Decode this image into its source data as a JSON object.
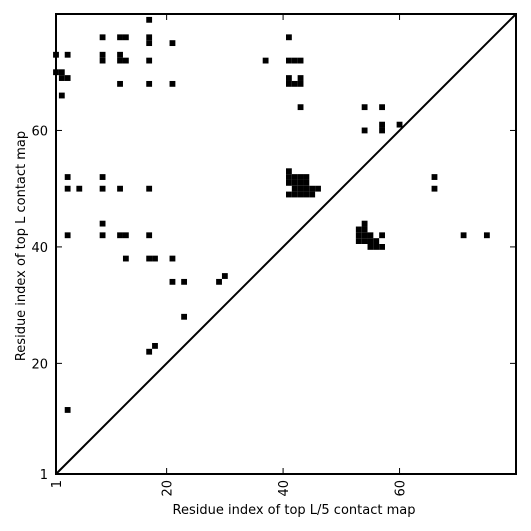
{
  "chart_data": {
    "type": "heatmap",
    "title": "",
    "xlabel": "Residue index of top L/5 contact map",
    "ylabel": "Residue index of top L contact map",
    "xlim": [
      1,
      80
    ],
    "ylim": [
      1,
      80
    ],
    "x_ticks": [
      1,
      20,
      40,
      60
    ],
    "y_ticks": [
      1,
      20,
      40,
      60
    ],
    "x_tick_labels": [
      "1",
      "20",
      "40",
      "60"
    ],
    "y_tick_labels": [
      "1",
      "20",
      "40",
      "60"
    ],
    "x_tick_rotation": 270,
    "diagonal": true,
    "grid": false,
    "cell_color": "#000000",
    "cells": [
      [
        3,
        12
      ],
      [
        17,
        22
      ],
      [
        18,
        23
      ],
      [
        23,
        28
      ],
      [
        21,
        34
      ],
      [
        23,
        34
      ],
      [
        29,
        34
      ],
      [
        30,
        35
      ],
      [
        13,
        38
      ],
      [
        17,
        38
      ],
      [
        18,
        38
      ],
      [
        21,
        38
      ],
      [
        3,
        42
      ],
      [
        9,
        42
      ],
      [
        12,
        42
      ],
      [
        13,
        42
      ],
      [
        17,
        42
      ],
      [
        71,
        42
      ],
      [
        75,
        42
      ],
      [
        9,
        44
      ],
      [
        3,
        50
      ],
      [
        5,
        50
      ],
      [
        9,
        50
      ],
      [
        12,
        50
      ],
      [
        17,
        50
      ],
      [
        66,
        50
      ],
      [
        3,
        52
      ],
      [
        9,
        52
      ],
      [
        66,
        52
      ],
      [
        41,
        49
      ],
      [
        42,
        49
      ],
      [
        43,
        49
      ],
      [
        44,
        49
      ],
      [
        45,
        49
      ],
      [
        42,
        50
      ],
      [
        43,
        50
      ],
      [
        44,
        50
      ],
      [
        45,
        50
      ],
      [
        46,
        50
      ],
      [
        41,
        51
      ],
      [
        42,
        51
      ],
      [
        43,
        51
      ],
      [
        44,
        51
      ],
      [
        41,
        52
      ],
      [
        42,
        52
      ],
      [
        43,
        52
      ],
      [
        44,
        52
      ],
      [
        41,
        53
      ],
      [
        55,
        40
      ],
      [
        56,
        40
      ],
      [
        57,
        40
      ],
      [
        53,
        41
      ],
      [
        54,
        41
      ],
      [
        55,
        41
      ],
      [
        56,
        41
      ],
      [
        53,
        42
      ],
      [
        54,
        42
      ],
      [
        55,
        42
      ],
      [
        57,
        42
      ],
      [
        53,
        43
      ],
      [
        54,
        43
      ],
      [
        54,
        44
      ],
      [
        54,
        60
      ],
      [
        57,
        60
      ],
      [
        57,
        61
      ],
      [
        60,
        61
      ],
      [
        54,
        64
      ],
      [
        57,
        64
      ],
      [
        43,
        64
      ],
      [
        2,
        66
      ],
      [
        1,
        70
      ],
      [
        2,
        70
      ],
      [
        2,
        69
      ],
      [
        3,
        69
      ],
      [
        1,
        73
      ],
      [
        3,
        73
      ],
      [
        9,
        73
      ],
      [
        12,
        73
      ],
      [
        9,
        72
      ],
      [
        12,
        72
      ],
      [
        13,
        72
      ],
      [
        17,
        72
      ],
      [
        37,
        72
      ],
      [
        41,
        72
      ],
      [
        42,
        72
      ],
      [
        43,
        72
      ],
      [
        12,
        68
      ],
      [
        17,
        68
      ],
      [
        21,
        68
      ],
      [
        41,
        68
      ],
      [
        42,
        68
      ],
      [
        43,
        68
      ],
      [
        41,
        69
      ],
      [
        43,
        69
      ],
      [
        9,
        76
      ],
      [
        12,
        76
      ],
      [
        13,
        76
      ],
      [
        17,
        76
      ],
      [
        17,
        75
      ],
      [
        21,
        75
      ],
      [
        41,
        76
      ],
      [
        17,
        79
      ]
    ]
  }
}
